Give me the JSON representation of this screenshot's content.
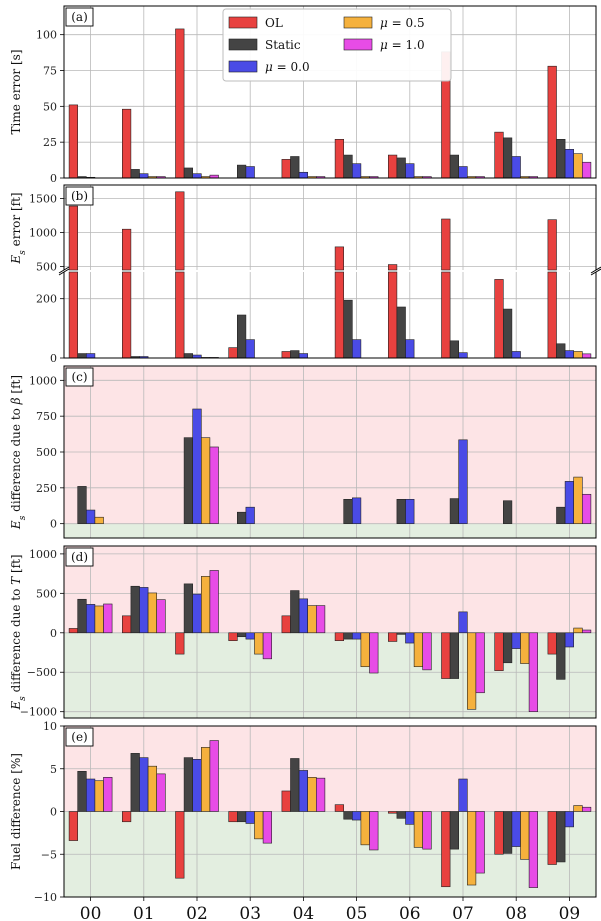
{
  "categories": [
    "00",
    "01",
    "02",
    "03",
    "04",
    "05",
    "06",
    "07",
    "08",
    "09"
  ],
  "colors": {
    "OL": "#e8413f",
    "Static": "#444444",
    "mu0": "#4a4be6",
    "mu05": "#f5b13d",
    "mu1": "#e74ce6",
    "region_pos": "#fde4e6",
    "region_neg": "#e3eee0"
  },
  "legend": {
    "items": [
      {
        "key": "OL",
        "label": "OL"
      },
      {
        "key": "Static",
        "label": "Static"
      },
      {
        "key": "mu0",
        "label": "μ = 0.0"
      },
      {
        "key": "mu05",
        "label": "μ = 0.5"
      },
      {
        "key": "mu1",
        "label": "μ = 1.0"
      }
    ]
  },
  "chart_data": [
    {
      "id": "a",
      "panel_label": "(a)",
      "type": "bar",
      "ylabel": "Time error [s]",
      "ylim": [
        0,
        120
      ],
      "yticks": [
        0,
        25,
        50,
        75,
        100
      ],
      "series": [
        {
          "key": "OL",
          "values": [
            51,
            48,
            104,
            0,
            13,
            27,
            16,
            88,
            32,
            78
          ]
        },
        {
          "key": "Static",
          "values": [
            1,
            6,
            7,
            9,
            15,
            16,
            14,
            16,
            28,
            27
          ]
        },
        {
          "key": "mu0",
          "values": [
            0.5,
            3,
            3,
            8,
            4,
            10,
            10,
            8,
            15,
            20
          ]
        },
        {
          "key": "mu05",
          "values": [
            0,
            1,
            1,
            0,
            1,
            1,
            1,
            1,
            1,
            17
          ]
        },
        {
          "key": "mu1",
          "values": [
            0,
            1,
            2,
            0,
            1,
            1,
            1,
            1,
            1,
            11
          ]
        }
      ]
    },
    {
      "id": "b",
      "panel_label": "(b)",
      "type": "bar",
      "ylabel": "Es error [ft]",
      "broken_axis": true,
      "upper_ylim": [
        450,
        1700
      ],
      "upper_yticks": [
        500,
        1000,
        1500
      ],
      "lower_ylim": [
        0,
        290
      ],
      "lower_yticks": [
        0,
        200
      ],
      "series": [
        {
          "key": "OL",
          "values": [
            1390,
            1050,
            1600,
            35,
            22,
            790,
            530,
            1200,
            265,
            1190
          ]
        },
        {
          "key": "Static",
          "values": [
            15,
            5,
            15,
            145,
            25,
            195,
            172,
            58,
            165,
            48
          ]
        },
        {
          "key": "mu0",
          "values": [
            15,
            5,
            10,
            62,
            15,
            62,
            62,
            18,
            22,
            25
          ]
        },
        {
          "key": "mu05",
          "values": [
            0,
            1,
            2,
            0,
            0,
            0,
            0,
            0,
            0,
            22
          ]
        },
        {
          "key": "mu1",
          "values": [
            0,
            1,
            2,
            0,
            0,
            0,
            0,
            0,
            0,
            14
          ]
        }
      ]
    },
    {
      "id": "c",
      "panel_label": "(c)",
      "type": "bar",
      "ylabel": "Es difference due to β [ft]",
      "ylim": [
        -100,
        1100
      ],
      "yticks": [
        0,
        250,
        500,
        750,
        1000
      ],
      "series": [
        {
          "key": "OL",
          "values": [
            0,
            0,
            0,
            0,
            0,
            0,
            0,
            0,
            0,
            0
          ]
        },
        {
          "key": "Static",
          "values": [
            260,
            0,
            600,
            80,
            0,
            170,
            170,
            175,
            160,
            115
          ]
        },
        {
          "key": "mu0",
          "values": [
            95,
            0,
            800,
            115,
            0,
            180,
            170,
            585,
            0,
            295
          ]
        },
        {
          "key": "mu05",
          "values": [
            45,
            0,
            600,
            0,
            0,
            0,
            0,
            0,
            0,
            325
          ]
        },
        {
          "key": "mu1",
          "values": [
            0,
            0,
            535,
            0,
            0,
            0,
            0,
            0,
            0,
            205
          ]
        }
      ]
    },
    {
      "id": "d",
      "panel_label": "(d)",
      "type": "bar",
      "ylabel": "Es difference due to T [ft]",
      "ylim": [
        -1080,
        1100
      ],
      "yticks": [
        -1000,
        -500,
        0,
        500,
        1000
      ],
      "series": [
        {
          "key": "OL",
          "values": [
            55,
            215,
            -270,
            -100,
            215,
            -100,
            -110,
            -580,
            -480,
            -270
          ]
        },
        {
          "key": "Static",
          "values": [
            425,
            590,
            620,
            -50,
            535,
            -80,
            -20,
            -580,
            -380,
            -590
          ]
        },
        {
          "key": "mu0",
          "values": [
            360,
            575,
            490,
            -80,
            430,
            -80,
            -130,
            265,
            -200,
            -180
          ]
        },
        {
          "key": "mu05",
          "values": [
            340,
            505,
            715,
            -270,
            345,
            -430,
            -430,
            -970,
            -390,
            60
          ]
        },
        {
          "key": "mu1",
          "values": [
            365,
            420,
            790,
            -330,
            345,
            -510,
            -470,
            -760,
            -1000,
            35
          ]
        }
      ]
    },
    {
      "id": "e",
      "panel_label": "(e)",
      "type": "bar",
      "ylabel": "Fuel difference [%]",
      "ylim": [
        -10,
        10
      ],
      "yticks": [
        -10,
        -5,
        0,
        5,
        10
      ],
      "series": [
        {
          "key": "OL",
          "values": [
            -3.4,
            -1.2,
            -7.8,
            -1.2,
            2.4,
            0.8,
            -0.2,
            -8.8,
            -5.0,
            -6.2
          ]
        },
        {
          "key": "Static",
          "values": [
            4.7,
            6.8,
            6.3,
            -1.2,
            6.2,
            -0.9,
            -0.8,
            -4.4,
            -4.9,
            -5.9
          ]
        },
        {
          "key": "mu0",
          "values": [
            3.8,
            6.3,
            6.1,
            -1.4,
            4.8,
            -1.0,
            -1.5,
            3.8,
            -4.1,
            -1.8
          ]
        },
        {
          "key": "mu05",
          "values": [
            3.6,
            5.3,
            7.5,
            -3.2,
            4.0,
            -3.9,
            -4.2,
            -8.6,
            -5.6,
            0.7
          ]
        },
        {
          "key": "mu1",
          "values": [
            4.0,
            4.4,
            8.3,
            -3.7,
            3.9,
            -4.5,
            -4.4,
            -7.2,
            -8.9,
            0.5
          ]
        }
      ]
    }
  ]
}
